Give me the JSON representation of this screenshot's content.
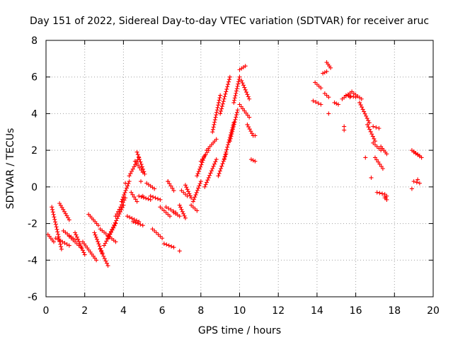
{
  "chart_data": {
    "type": "scatter",
    "title": "Day 151 of 2022, Sidereal Day-to-day VTEC variation (SDTVAR) for receiver aruc",
    "xlabel": "GPS time / hours",
    "ylabel": "SDTVAR / TECUs",
    "xlim": [
      0,
      20
    ],
    "ylim": [
      -6,
      8
    ],
    "xticks": [
      0,
      2,
      4,
      6,
      8,
      10,
      12,
      14,
      16,
      18,
      20
    ],
    "yticks": [
      -6,
      -4,
      -2,
      0,
      2,
      4,
      6,
      8
    ],
    "grid": true,
    "marker": "+",
    "color": "#ff0000",
    "series": [
      {
        "name": "SDTVAR",
        "segments": [
          {
            "x": [
              0.1,
              0.4
            ],
            "y": [
              -2.6,
              -3.0
            ]
          },
          {
            "x": [
              0.3,
              0.8
            ],
            "y": [
              -1.1,
              -3.4
            ]
          },
          {
            "x": [
              0.5,
              1.2
            ],
            "y": [
              -2.8,
              -3.2
            ]
          },
          {
            "x": [
              0.7,
              1.2
            ],
            "y": [
              -0.9,
              -1.8
            ]
          },
          {
            "x": [
              0.9,
              1.5
            ],
            "y": [
              -2.4,
              -2.9
            ]
          },
          {
            "x": [
              1.2,
              1.8
            ],
            "y": [
              -2.7,
              -3.3
            ]
          },
          {
            "x": [
              1.5,
              2.0
            ],
            "y": [
              -2.5,
              -3.7
            ]
          },
          {
            "x": [
              1.9,
              2.6
            ],
            "y": [
              -3.0,
              -4.0
            ]
          },
          {
            "x": [
              2.2,
              2.7
            ],
            "y": [
              -1.5,
              -2.1
            ]
          },
          {
            "x": [
              2.5,
              2.9
            ],
            "y": [
              -2.5,
              -3.6
            ]
          },
          {
            "x": [
              2.8,
              3.2
            ],
            "y": [
              -3.4,
              -4.3
            ]
          },
          {
            "x": [
              2.8,
              3.6
            ],
            "y": [
              -2.3,
              -3.0
            ]
          },
          {
            "x": [
              3.0,
              3.6
            ],
            "y": [
              -3.2,
              -2.0
            ]
          },
          {
            "x": [
              3.2,
              4.0
            ],
            "y": [
              -2.8,
              -1.0
            ]
          },
          {
            "x": [
              3.6,
              4.1
            ],
            "y": [
              -1.6,
              -0.6
            ]
          },
          {
            "x": [
              3.9,
              4.3
            ],
            "y": [
              -0.8,
              0.3
            ]
          },
          {
            "x": [
              4.2,
              4.8
            ],
            "y": [
              -1.6,
              -1.9
            ]
          },
          {
            "x": [
              4.5,
              5.0
            ],
            "y": [
              -1.9,
              -2.1
            ]
          },
          {
            "x": [
              4.3,
              4.8
            ],
            "y": [
              0.6,
              1.6
            ]
          },
          {
            "x": [
              4.6,
              5.0
            ],
            "y": [
              1.4,
              0.8
            ]
          },
          {
            "x": [
              4.7,
              5.1
            ],
            "y": [
              1.9,
              0.7
            ]
          },
          {
            "x": [
              4.4,
              4.7
            ],
            "y": [
              -0.3,
              -0.8
            ]
          },
          {
            "x": [
              4.8,
              5.4
            ],
            "y": [
              -0.5,
              -0.7
            ]
          },
          {
            "x": [
              5.4,
              5.9
            ],
            "y": [
              -0.5,
              -0.7
            ]
          },
          {
            "x": [
              5.2,
              5.6
            ],
            "y": [
              0.2,
              -0.1
            ]
          },
          {
            "x": [
              5.5,
              6.0
            ],
            "y": [
              -2.3,
              -2.8
            ]
          },
          {
            "x": [
              5.9,
              6.4
            ],
            "y": [
              -1.1,
              -1.6
            ]
          },
          {
            "x": [
              6.1,
              6.6
            ],
            "y": [
              -3.1,
              -3.3
            ]
          },
          {
            "x": [
              6.2,
              6.7
            ],
            "y": [
              -1.1,
              -1.4
            ]
          },
          {
            "x": [
              6.3,
              6.6
            ],
            "y": [
              0.3,
              -0.2
            ]
          },
          {
            "x": [
              6.6,
              6.9
            ],
            "y": [
              -1.4,
              -1.6
            ]
          },
          {
            "x": [
              6.9,
              7.2
            ],
            "y": [
              -1.0,
              -1.7
            ]
          },
          {
            "x": [
              7.0,
              7.3
            ],
            "y": [
              -0.2,
              -0.5
            ]
          },
          {
            "x": [
              7.2,
              7.5
            ],
            "y": [
              0.1,
              -0.6
            ]
          },
          {
            "x": [
              7.5,
              7.8
            ],
            "y": [
              -1.0,
              -1.3
            ]
          },
          {
            "x": [
              7.6,
              8.0
            ],
            "y": [
              -0.8,
              0.3
            ]
          },
          {
            "x": [
              7.8,
              8.2
            ],
            "y": [
              0.6,
              1.7
            ]
          },
          {
            "x": [
              8.0,
              8.4
            ],
            "y": [
              1.4,
              2.0
            ]
          },
          {
            "x": [
              8.2,
              8.8
            ],
            "y": [
              0.0,
              1.5
            ]
          },
          {
            "x": [
              8.3,
              8.8
            ],
            "y": [
              2.0,
              2.6
            ]
          },
          {
            "x": [
              8.6,
              9.0
            ],
            "y": [
              3.0,
              5.0
            ]
          },
          {
            "x": [
              8.9,
              9.3
            ],
            "y": [
              0.6,
              1.8
            ]
          },
          {
            "x": [
              9.0,
              9.5
            ],
            "y": [
              4.0,
              6.0
            ]
          },
          {
            "x": [
              9.2,
              9.7
            ],
            "y": [
              1.5,
              3.5
            ]
          },
          {
            "x": [
              9.5,
              9.9
            ],
            "y": [
              2.5,
              4.2
            ]
          },
          {
            "x": [
              9.7,
              10.0
            ],
            "y": [
              4.6,
              6.0
            ]
          },
          {
            "x": [
              10.0,
              10.3
            ],
            "y": [
              6.4,
              6.6
            ]
          },
          {
            "x": [
              10.1,
              10.5
            ],
            "y": [
              5.8,
              4.8
            ]
          },
          {
            "x": [
              10.0,
              10.5
            ],
            "y": [
              4.5,
              3.8
            ]
          },
          {
            "x": [
              10.4,
              10.7
            ],
            "y": [
              3.4,
              2.8
            ]
          },
          {
            "x": [
              10.6,
              10.8
            ],
            "y": [
              1.5,
              1.4
            ]
          },
          {
            "x": [
              13.9,
              14.2
            ],
            "y": [
              5.7,
              5.4
            ]
          },
          {
            "x": [
              13.8,
              14.2
            ],
            "y": [
              4.7,
              4.5
            ]
          },
          {
            "x": [
              14.3,
              14.5
            ],
            "y": [
              6.2,
              6.3
            ]
          },
          {
            "x": [
              14.4,
              14.6
            ],
            "y": [
              5.1,
              4.9
            ]
          },
          {
            "x": [
              14.5,
              14.7
            ],
            "y": [
              6.8,
              6.5
            ]
          },
          {
            "x": [
              14.9,
              15.1
            ],
            "y": [
              4.6,
              4.5
            ]
          },
          {
            "x": [
              15.3,
              15.8
            ],
            "y": [
              4.8,
              5.2
            ]
          },
          {
            "x": [
              15.5,
              16.0
            ],
            "y": [
              5.0,
              4.9
            ]
          },
          {
            "x": [
              15.9,
              16.3
            ],
            "y": [
              5.1,
              4.8
            ]
          },
          {
            "x": [
              16.2,
              16.7
            ],
            "y": [
              4.6,
              3.5
            ]
          },
          {
            "x": [
              16.6,
              17.0
            ],
            "y": [
              3.4,
              2.5
            ]
          },
          {
            "x": [
              16.9,
              17.3
            ],
            "y": [
              2.4,
              2.0
            ]
          },
          {
            "x": [
              16.9,
              17.2
            ],
            "y": [
              3.3,
              3.2
            ]
          },
          {
            "x": [
              17.0,
              17.4
            ],
            "y": [
              1.6,
              1.0
            ]
          },
          {
            "x": [
              17.1,
              17.5
            ],
            "y": [
              -0.3,
              -0.4
            ]
          },
          {
            "x": [
              17.3,
              17.6
            ],
            "y": [
              2.2,
              1.8
            ]
          },
          {
            "x": [
              17.5,
              17.6
            ],
            "y": [
              -0.5,
              -0.7
            ]
          },
          {
            "x": [
              18.9,
              19.3
            ],
            "y": [
              2.0,
              1.7
            ]
          },
          {
            "x": [
              19.0,
              19.4
            ],
            "y": [
              1.9,
              1.6
            ]
          },
          {
            "x": [
              19.0,
              19.3
            ],
            "y": [
              0.3,
              0.2
            ]
          }
        ],
        "points": [
          {
            "x": 3.2,
            "y": -2.7
          },
          {
            "x": 4.1,
            "y": 0.2
          },
          {
            "x": 4.9,
            "y": 0.3
          },
          {
            "x": 5.0,
            "y": -0.5
          },
          {
            "x": 6.3,
            "y": 0.3
          },
          {
            "x": 6.9,
            "y": -3.5
          },
          {
            "x": 10.8,
            "y": 2.8
          },
          {
            "x": 14.6,
            "y": 4.0
          },
          {
            "x": 15.4,
            "y": 3.3
          },
          {
            "x": 15.4,
            "y": 3.1
          },
          {
            "x": 15.7,
            "y": 4.9
          },
          {
            "x": 16.5,
            "y": 1.6
          },
          {
            "x": 16.8,
            "y": 0.5
          },
          {
            "x": 17.5,
            "y": -0.6
          },
          {
            "x": 17.6,
            "y": -0.5
          },
          {
            "x": 18.9,
            "y": -0.1
          },
          {
            "x": 19.2,
            "y": 0.4
          }
        ]
      }
    ]
  }
}
